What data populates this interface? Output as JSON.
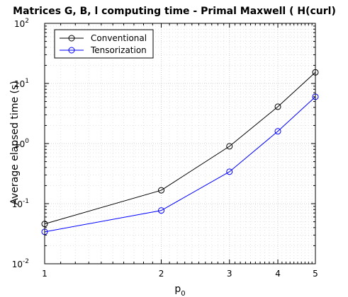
{
  "chart_data": {
    "type": "line",
    "title": "Matrices G, B, l computing time - Primal Maxwell ( H(curl)",
    "xlabel": {
      "base": "p",
      "sub": "0"
    },
    "ylabel": "Average elapsed time (s)",
    "x_scale": "log",
    "y_scale": "log",
    "xlim": [
      1,
      5
    ],
    "ylim": [
      0.01,
      100
    ],
    "x_ticks": [
      "1",
      "2",
      "3",
      "4",
      "5"
    ],
    "y_ticks": [
      {
        "base": "10",
        "exp": "-2"
      },
      {
        "base": "10",
        "exp": "-1"
      },
      {
        "base": "10",
        "exp": "0"
      },
      {
        "base": "10",
        "exp": "1"
      },
      {
        "base": "10",
        "exp": "2"
      }
    ],
    "grid": true,
    "minor_grid": true,
    "legend_position": "top-left",
    "x": [
      1,
      2,
      3,
      4,
      5
    ],
    "series": [
      {
        "name": "Conventional",
        "color": "#000000",
        "marker": "circle",
        "values": [
          0.046,
          0.167,
          0.9,
          4.1,
          15.3
        ]
      },
      {
        "name": "Tensorization",
        "color": "#0000ff",
        "marker": "circle",
        "values": [
          0.034,
          0.077,
          0.34,
          1.6,
          6.0
        ]
      }
    ]
  }
}
